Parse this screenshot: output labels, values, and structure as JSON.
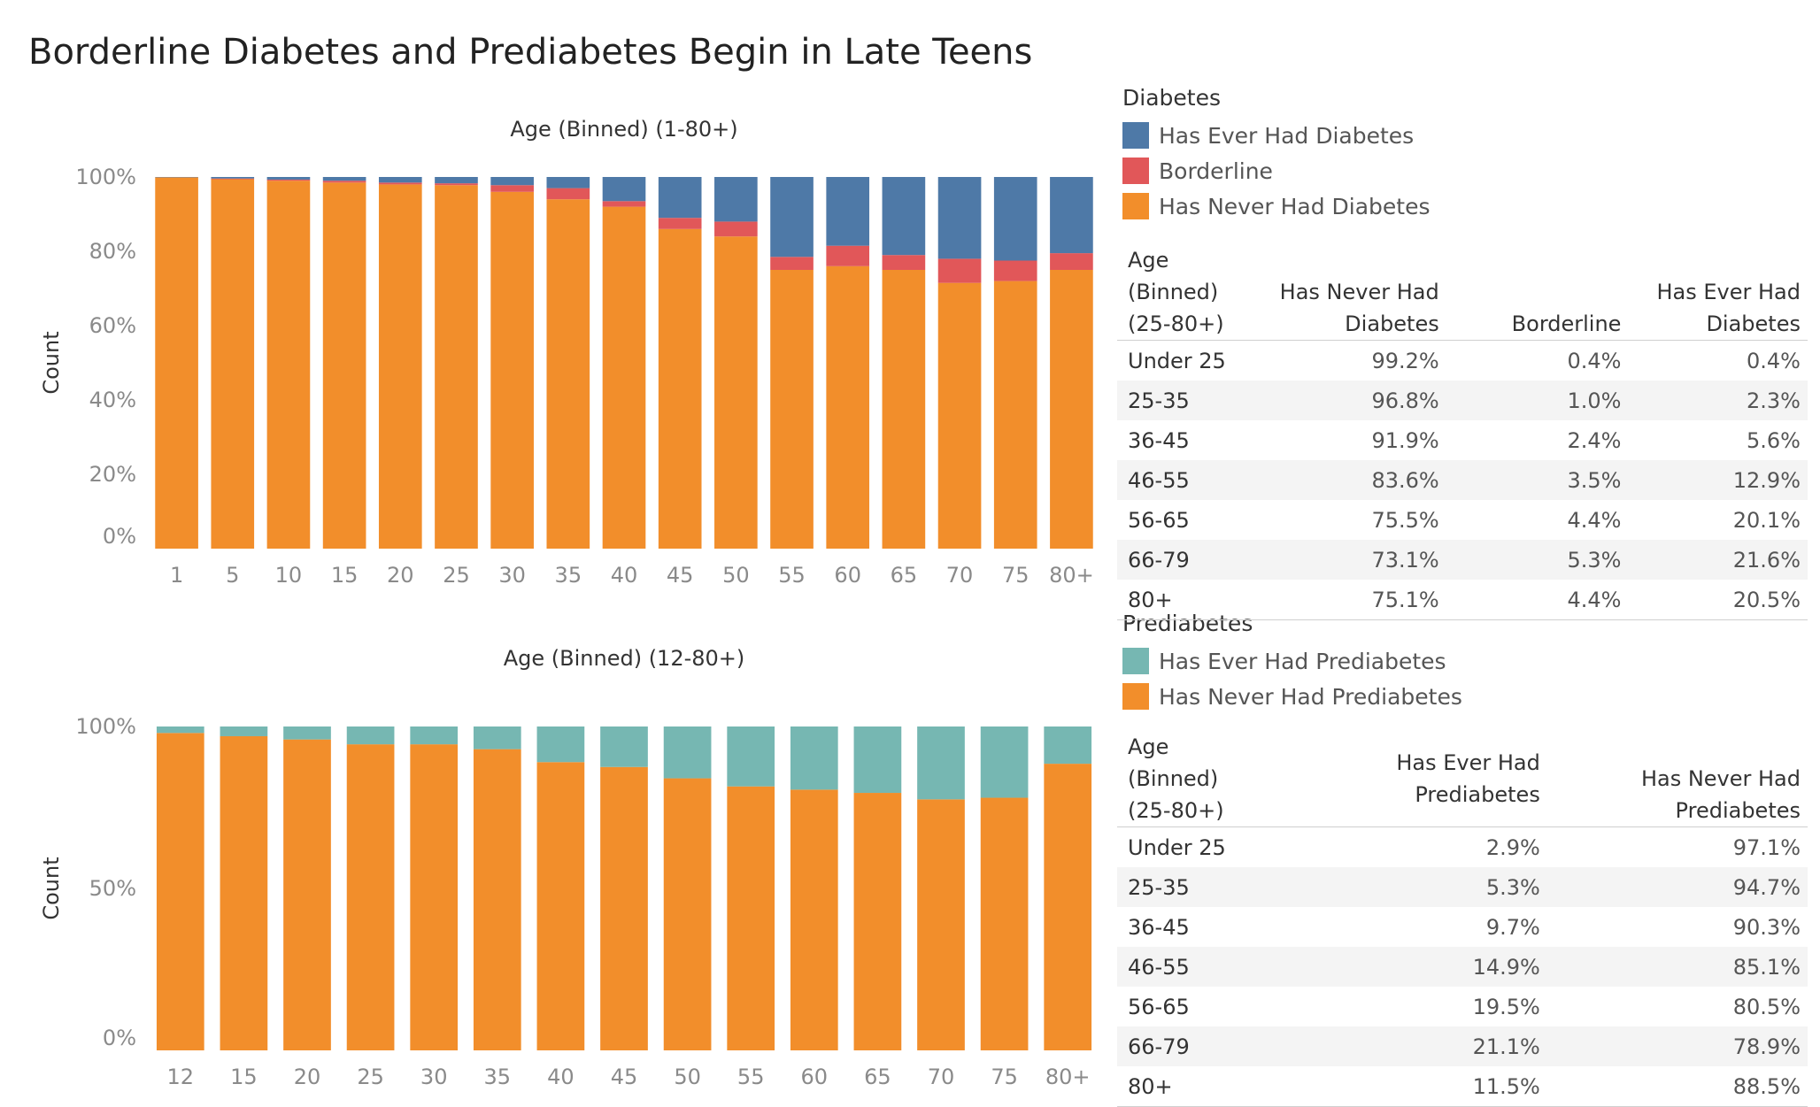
{
  "title": "Borderline Diabetes and Prediabetes Begin in Late Teens",
  "colors": {
    "has_ever_had_diabetes": "#4e79a7",
    "borderline": "#e15759",
    "has_never_had_diabetes": "#f28e2b",
    "has_ever_had_prediabetes": "#76b7b2",
    "has_never_had_prediabetes": "#f28e2b"
  },
  "chart_data": [
    {
      "type": "bar",
      "stacked": true,
      "title": "Age (Binned) (1-80+)",
      "xlabel": "",
      "ylabel": "Count",
      "ylim": [
        0,
        100
      ],
      "y_ticks": [
        "0%",
        "20%",
        "40%",
        "60%",
        "80%",
        "100%"
      ],
      "categories": [
        "1",
        "5",
        "10",
        "15",
        "20",
        "25",
        "30",
        "35",
        "40",
        "45",
        "50",
        "55",
        "60",
        "65",
        "70",
        "75",
        "80+"
      ],
      "series": [
        {
          "name": "Has Never Had Diabetes",
          "color": "#f28e2b",
          "values": [
            99.9,
            99.4,
            99.0,
            98.5,
            98.0,
            97.8,
            96.0,
            94.0,
            92.0,
            86.0,
            84.0,
            75.0,
            76.0,
            75.0,
            71.5,
            72.0,
            75.0
          ]
        },
        {
          "name": "Borderline",
          "color": "#e15759",
          "values": [
            0.0,
            0.2,
            0.3,
            0.5,
            0.5,
            0.5,
            1.8,
            3.0,
            1.5,
            3.0,
            4.0,
            3.5,
            5.5,
            4.0,
            6.5,
            5.5,
            4.5
          ]
        },
        {
          "name": "Has Ever Had Diabetes",
          "color": "#4e79a7",
          "values": [
            0.1,
            0.4,
            0.7,
            1.0,
            1.5,
            1.7,
            2.2,
            3.0,
            6.5,
            11.0,
            12.0,
            21.5,
            18.5,
            21.0,
            22.0,
            22.5,
            20.5
          ]
        }
      ]
    },
    {
      "type": "bar",
      "stacked": true,
      "title": "Age (Binned) (12-80+)",
      "xlabel": "",
      "ylabel": "Count",
      "ylim": [
        0,
        100
      ],
      "y_ticks": [
        "0%",
        "50%",
        "100%"
      ],
      "categories": [
        "12",
        "15",
        "20",
        "25",
        "30",
        "35",
        "40",
        "45",
        "50",
        "55",
        "60",
        "65",
        "70",
        "75",
        "80+"
      ],
      "series": [
        {
          "name": "Has Never Had Prediabetes",
          "color": "#f28e2b",
          "values": [
            98.0,
            97.0,
            96.0,
            94.5,
            94.5,
            93.0,
            89.0,
            87.5,
            84.0,
            81.5,
            80.5,
            79.5,
            77.5,
            78.0,
            88.5
          ]
        },
        {
          "name": "Has Ever Had Prediabetes",
          "color": "#76b7b2",
          "values": [
            2.0,
            3.0,
            4.0,
            5.5,
            5.5,
            7.0,
            11.0,
            12.5,
            16.0,
            18.5,
            19.5,
            20.5,
            22.5,
            22.0,
            11.5
          ]
        }
      ]
    }
  ],
  "legend1": {
    "title": "Diabetes",
    "items": [
      {
        "label": "Has Ever Had Diabetes",
        "color": "#4e79a7"
      },
      {
        "label": "Borderline",
        "color": "#e15759"
      },
      {
        "label": "Has Never Had Diabetes",
        "color": "#f28e2b"
      }
    ]
  },
  "legend2": {
    "title": "Prediabetes",
    "items": [
      {
        "label": "Has Ever Had Prediabetes",
        "color": "#76b7b2"
      },
      {
        "label": "Has Never Had Prediabetes",
        "color": "#f28e2b"
      }
    ]
  },
  "table1": {
    "headers": [
      [
        "Age (Binned)",
        "(25-80+)"
      ],
      [
        "Has Never Had",
        "Diabetes"
      ],
      [
        "Borderline"
      ],
      [
        "Has Ever Had",
        "Diabetes"
      ]
    ],
    "rows": [
      [
        "Under 25",
        "99.2%",
        "0.4%",
        "0.4%"
      ],
      [
        "25-35",
        "96.8%",
        "1.0%",
        "2.3%"
      ],
      [
        "36-45",
        "91.9%",
        "2.4%",
        "5.6%"
      ],
      [
        "46-55",
        "83.6%",
        "3.5%",
        "12.9%"
      ],
      [
        "56-65",
        "75.5%",
        "4.4%",
        "20.1%"
      ],
      [
        "66-79",
        "73.1%",
        "5.3%",
        "21.6%"
      ],
      [
        "80+",
        "75.1%",
        "4.4%",
        "20.5%"
      ]
    ]
  },
  "table2": {
    "headers": [
      [
        "Age (Binned)",
        "(25-80+)"
      ],
      [
        "Has Ever Had Prediabetes"
      ],
      [
        "Has Never Had",
        "Prediabetes"
      ]
    ],
    "rows": [
      [
        "Under 25",
        "2.9%",
        "97.1%"
      ],
      [
        "25-35",
        "5.3%",
        "94.7%"
      ],
      [
        "36-45",
        "9.7%",
        "90.3%"
      ],
      [
        "46-55",
        "14.9%",
        "85.1%"
      ],
      [
        "56-65",
        "19.5%",
        "80.5%"
      ],
      [
        "66-79",
        "21.1%",
        "78.9%"
      ],
      [
        "80+",
        "11.5%",
        "88.5%"
      ]
    ]
  }
}
